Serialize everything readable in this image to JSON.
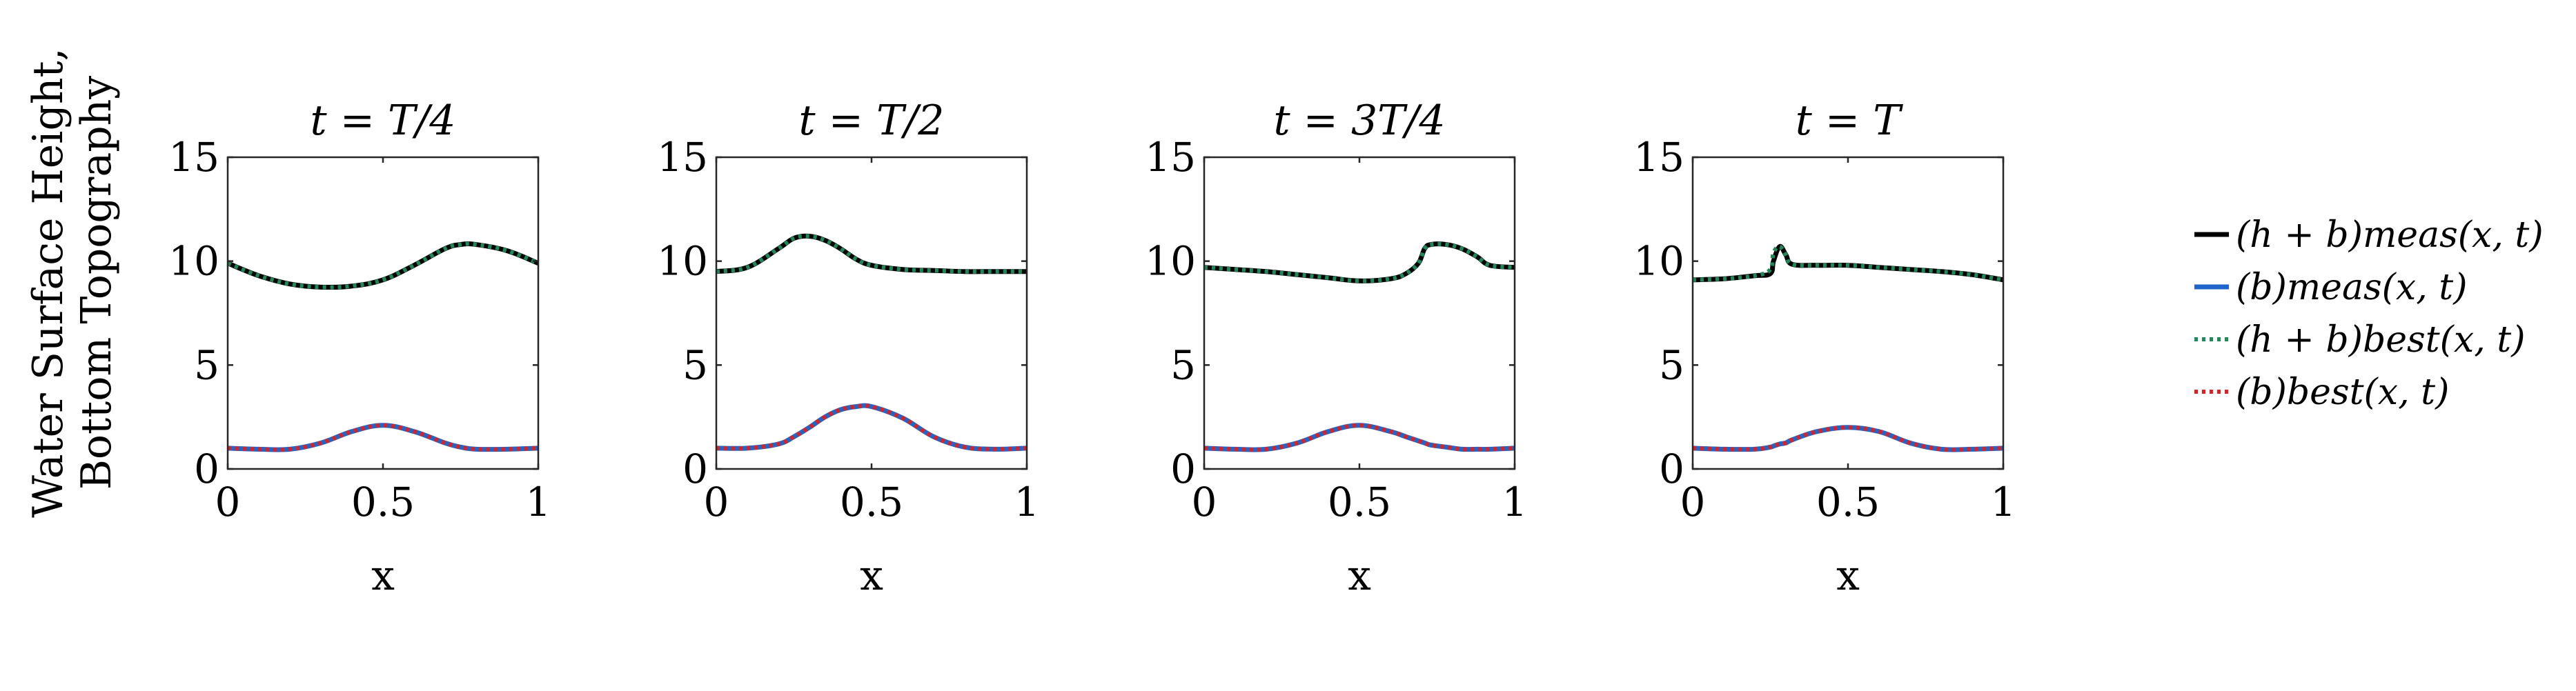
{
  "figure": {
    "ylabel_line1": "Water Surface Height,",
    "ylabel_line2": "Bottom Topography"
  },
  "legend": {
    "entries": [
      {
        "label": "(h + b)meas(x, t)",
        "color": "#000000",
        "style": "solid"
      },
      {
        "label": "(b)meas(x, t)",
        "color": "#1f66c9",
        "style": "solid"
      },
      {
        "label": "(h + b)best(x, t)",
        "color": "#1e8a5a",
        "style": "dotted"
      },
      {
        "label": "(b)best(x, t)",
        "color": "#e02020",
        "style": "dotted"
      }
    ]
  },
  "chart_data": [
    {
      "type": "line",
      "title": "t = T/4",
      "xlabel": "x",
      "ylabel": "Water Surface Height, Bottom Topography",
      "xlim": [
        0,
        1
      ],
      "ylim": [
        0,
        15
      ],
      "xticks": [
        "0",
        "0.5",
        "1"
      ],
      "yticks": [
        "0",
        "5",
        "10",
        "15"
      ],
      "x": [
        0,
        0.1,
        0.2,
        0.3,
        0.4,
        0.5,
        0.6,
        0.7,
        0.75,
        0.8,
        0.9,
        1.0
      ],
      "series": [
        {
          "name": "(h + b)meas(x, t)",
          "values": [
            9.9,
            9.3,
            8.9,
            8.75,
            8.8,
            9.1,
            9.8,
            10.6,
            10.8,
            10.8,
            10.5,
            9.9
          ]
        },
        {
          "name": "(h + b)best(x, t)",
          "values": [
            9.9,
            9.3,
            8.9,
            8.75,
            8.8,
            9.1,
            9.8,
            10.6,
            10.8,
            10.8,
            10.5,
            9.9
          ]
        },
        {
          "name": "(b)meas(x, t)",
          "values": [
            1.0,
            0.95,
            0.95,
            1.25,
            1.8,
            2.1,
            1.8,
            1.25,
            1.05,
            0.95,
            0.95,
            1.0
          ]
        },
        {
          "name": "(b)best(x, t)",
          "values": [
            1.0,
            0.95,
            0.95,
            1.25,
            1.8,
            2.1,
            1.8,
            1.25,
            1.05,
            0.95,
            0.95,
            1.0
          ]
        }
      ]
    },
    {
      "type": "line",
      "title": "t = T/2",
      "xlabel": "x",
      "ylabel": "Water Surface Height, Bottom Topography",
      "xlim": [
        0,
        1
      ],
      "ylim": [
        0,
        15
      ],
      "xticks": [
        "0",
        "0.5",
        "1"
      ],
      "yticks": [
        "0",
        "5",
        "10",
        "15"
      ],
      "x": [
        0,
        0.1,
        0.2,
        0.25,
        0.3,
        0.35,
        0.4,
        0.45,
        0.5,
        0.6,
        0.7,
        0.8,
        0.9,
        1.0
      ],
      "series": [
        {
          "name": "(h + b)meas(x, t)",
          "values": [
            9.5,
            9.7,
            10.6,
            11.1,
            11.2,
            11.0,
            10.6,
            10.1,
            9.8,
            9.6,
            9.55,
            9.5,
            9.5,
            9.5
          ]
        },
        {
          "name": "(h + b)best(x, t)",
          "values": [
            9.5,
            9.7,
            10.6,
            11.1,
            11.2,
            11.0,
            10.6,
            10.1,
            9.8,
            9.6,
            9.55,
            9.5,
            9.5,
            9.5
          ]
        },
        {
          "name": "(b)meas(x, t)",
          "values": [
            1.0,
            1.0,
            1.2,
            1.55,
            2.0,
            2.5,
            2.85,
            3.0,
            3.0,
            2.45,
            1.55,
            1.05,
            0.95,
            1.0
          ]
        },
        {
          "name": "(b)best(x, t)",
          "values": [
            1.0,
            1.0,
            1.2,
            1.55,
            2.0,
            2.5,
            2.85,
            3.0,
            3.0,
            2.45,
            1.55,
            1.05,
            0.95,
            1.0
          ]
        }
      ]
    },
    {
      "type": "line",
      "title": "t = 3T/4",
      "xlabel": "x",
      "ylabel": "Water Surface Height, Bottom Topography",
      "xlim": [
        0,
        1
      ],
      "ylim": [
        0,
        15
      ],
      "xticks": [
        "0",
        "0.5",
        "1"
      ],
      "yticks": [
        "0",
        "5",
        "10",
        "15"
      ],
      "x": [
        0,
        0.1,
        0.2,
        0.3,
        0.4,
        0.5,
        0.6,
        0.65,
        0.69,
        0.71,
        0.73,
        0.78,
        0.83,
        0.88,
        0.92,
        1.0
      ],
      "series": [
        {
          "name": "(h + b)meas(x, t)",
          "values": [
            9.7,
            9.6,
            9.5,
            9.35,
            9.2,
            9.05,
            9.15,
            9.4,
            9.9,
            10.6,
            10.8,
            10.8,
            10.6,
            10.2,
            9.8,
            9.7
          ]
        },
        {
          "name": "(h + b)best(x, t)",
          "values": [
            9.7,
            9.6,
            9.5,
            9.35,
            9.2,
            9.05,
            9.15,
            9.4,
            9.9,
            10.6,
            10.8,
            10.8,
            10.6,
            10.2,
            9.8,
            9.7
          ]
        },
        {
          "name": "(b)meas(x, t)",
          "values": [
            1.0,
            0.95,
            0.95,
            1.25,
            1.8,
            2.1,
            1.8,
            1.55,
            1.35,
            1.25,
            1.15,
            1.05,
            0.95,
            0.95,
            0.95,
            1.0
          ]
        },
        {
          "name": "(b)best(x, t)",
          "values": [
            1.0,
            0.95,
            0.95,
            1.25,
            1.8,
            2.1,
            1.8,
            1.55,
            1.35,
            1.25,
            1.15,
            1.05,
            0.95,
            0.95,
            0.95,
            1.0
          ]
        }
      ]
    },
    {
      "type": "line",
      "title": "t = T",
      "xlabel": "x",
      "ylabel": "Water Surface Height, Bottom Topography",
      "xlim": [
        0,
        1
      ],
      "ylim": [
        0,
        15
      ],
      "xticks": [
        "0",
        "0.5",
        "1"
      ],
      "yticks": [
        "0",
        "5",
        "10",
        "15"
      ],
      "x": [
        0,
        0.1,
        0.2,
        0.25,
        0.26,
        0.28,
        0.3,
        0.32,
        0.4,
        0.5,
        0.6,
        0.7,
        0.8,
        0.9,
        1.0
      ],
      "series": [
        {
          "name": "(h + b)meas(x, t)",
          "values": [
            9.1,
            9.15,
            9.3,
            9.4,
            10.0,
            10.7,
            10.3,
            9.85,
            9.8,
            9.8,
            9.7,
            9.6,
            9.5,
            9.35,
            9.1
          ]
        },
        {
          "name": "(h + b)best(x, t)",
          "values": [
            9.1,
            9.15,
            9.3,
            9.6,
            10.4,
            10.7,
            10.3,
            9.85,
            9.8,
            9.8,
            9.7,
            9.6,
            9.5,
            9.35,
            9.1
          ]
        },
        {
          "name": "(b)meas(x, t)",
          "values": [
            1.0,
            0.95,
            0.95,
            1.05,
            1.1,
            1.2,
            1.25,
            1.4,
            1.8,
            2.0,
            1.8,
            1.25,
            0.95,
            0.95,
            1.0
          ]
        },
        {
          "name": "(b)best(x, t)",
          "values": [
            1.0,
            0.95,
            0.95,
            1.05,
            1.1,
            1.2,
            1.25,
            1.4,
            1.8,
            2.0,
            1.8,
            1.25,
            0.95,
            0.95,
            1.0
          ]
        }
      ]
    }
  ]
}
